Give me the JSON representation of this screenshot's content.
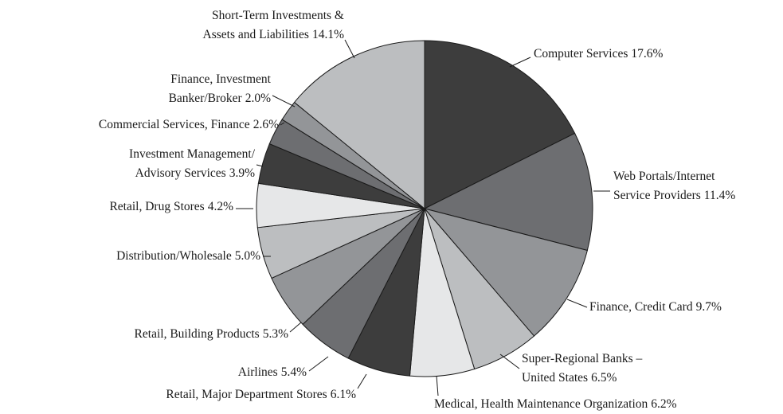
{
  "chart_data": {
    "type": "pie",
    "categories": [
      [
        "Computer Services"
      ],
      [
        "Web Portals/Internet",
        "Service Providers"
      ],
      [
        "Finance, Credit Card"
      ],
      [
        "Super-Regional Banks –",
        "United States"
      ],
      [
        "Medical, Health Maintenance Organization"
      ],
      [
        "Retail, Major Department Stores"
      ],
      [
        "Airlines"
      ],
      [
        "Retail, Building Products"
      ],
      [
        "Distribution/Wholesale"
      ],
      [
        "Retail, Drug Stores"
      ],
      [
        "Investment Management/",
        "Advisory Services"
      ],
      [
        "Commercial Services, Finance"
      ],
      [
        "Finance, Investment",
        "Banker/Broker"
      ],
      [
        "Short-Term Investments &",
        "Assets and Liabilities"
      ]
    ],
    "values": [
      17.6,
      11.4,
      9.7,
      6.5,
      6.2,
      6.1,
      5.4,
      5.3,
      5.0,
      4.2,
      3.9,
      2.6,
      2.0,
      14.1
    ],
    "value_labels": [
      "17.6%",
      "11.4%",
      "9.7%",
      "6.5%",
      "6.2%",
      "6.1%",
      "5.4%",
      "5.3%",
      "5.0%",
      "4.2%",
      "3.9%",
      "2.6%",
      "2.0%",
      "14.1%"
    ],
    "colors": [
      "#3d3d3d",
      "#6d6e71",
      "#939598",
      "#bcbec0",
      "#e6e7e8",
      "#3d3d3d",
      "#6d6e71",
      "#939598",
      "#bcbec0",
      "#e6e7e8",
      "#3d3d3d",
      "#6d6e71",
      "#939598",
      "#bcbec0"
    ]
  }
}
